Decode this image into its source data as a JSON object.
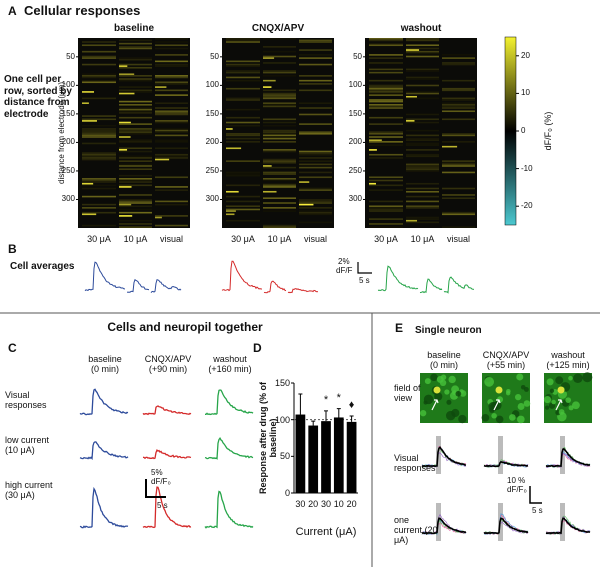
{
  "panel_a": {
    "letter": "A",
    "title": "Cellular responses",
    "row_note": "One cell per row, sorted by distance from electrode",
    "y_label": "distance from electrode (μm)",
    "ylim": [
      17,
      350
    ],
    "yticks": [
      50,
      100,
      150,
      200,
      250,
      300
    ],
    "conditions": [
      "baseline",
      "CNQX/APV",
      "washout"
    ],
    "stim_labels": [
      "30 μA",
      "10 μA",
      "visual"
    ],
    "colorbar": {
      "label": "dF/F₀ (%)",
      "lim": [
        -25,
        25
      ],
      "ticks": [
        20,
        10,
        0,
        -10,
        -20
      ]
    }
  },
  "panel_b": {
    "letter": "B",
    "title": "Cell averages",
    "scale_y": "2%",
    "scale_y_unit": "dF/F",
    "scale_x": "5 s"
  },
  "panel_c": {
    "letter": "C",
    "title": "Cells and neuropil together",
    "conditions": [
      {
        "name": "baseline",
        "time": "(0 min)"
      },
      {
        "name": "CNQX/APV",
        "time": "(+90 min)"
      },
      {
        "name": "washout",
        "time": "(+160 min)"
      }
    ],
    "rows": [
      "Visual responses",
      "low current (10 μA)",
      "high current (30 μA)"
    ],
    "scale_y": "5%",
    "scale_y_unit": "dF/F₀",
    "scale_x": "5 s"
  },
  "panel_d": {
    "letter": "D"
  },
  "chart_data": {
    "type": "bar",
    "y_label": "Response after drug (% of baseline)",
    "x_label": "Current (μA)",
    "categories": [
      "30",
      "20",
      "30",
      "10",
      "20"
    ],
    "values": [
      107,
      92,
      98,
      103,
      97
    ],
    "errors": [
      28,
      6,
      14,
      12,
      8
    ],
    "markers": [
      null,
      null,
      "*",
      "*",
      "♦"
    ],
    "color": "#000000",
    "ylim": [
      0,
      150
    ],
    "yticks": [
      0,
      50,
      100,
      150
    ],
    "reference_line": 100
  },
  "panel_e": {
    "letter": "E",
    "title": "Single neuron",
    "conditions": [
      {
        "name": "baseline",
        "time": "(0 min)"
      },
      {
        "name": "CNQX/APV",
        "time": "(+55 min)"
      },
      {
        "name": "washout",
        "time": "(+125 min)"
      }
    ],
    "rows": [
      "field of view",
      "Visual responses",
      "one current (20 μA)"
    ],
    "scale_y": "10 %",
    "scale_y_unit": "dF/F₀",
    "scale_x": "5 s"
  }
}
